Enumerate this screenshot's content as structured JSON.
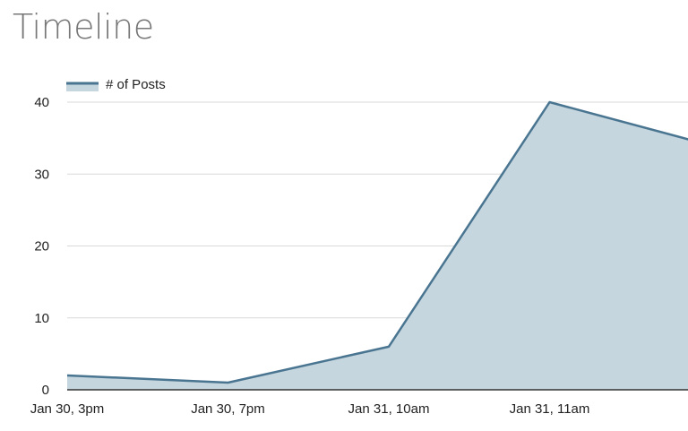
{
  "header": {
    "title": "Timeline"
  },
  "chart_data": {
    "type": "area",
    "categories": [
      "Jan 30, 3pm",
      "Jan 30, 7pm",
      "Jan 31, 10am",
      "Jan 31, 11am",
      ""
    ],
    "series": [
      {
        "name": "# of Posts",
        "values": [
          2,
          1,
          6,
          40,
          34
        ],
        "color": "#4a7591",
        "fill": "#c5d6df"
      }
    ],
    "yticks": [
      0,
      10,
      20,
      30,
      40
    ],
    "ylim": [
      0,
      40
    ],
    "grid": true,
    "legend": "top-left",
    "colors": {
      "line": "#4a7591",
      "fill": "#c5d6df",
      "grid": "#d9d9d9",
      "baseline": "#333333"
    }
  }
}
